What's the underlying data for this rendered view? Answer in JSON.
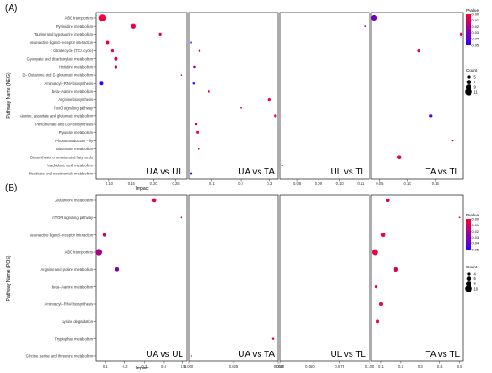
{
  "chart_data": [
    {
      "type": "scatter",
      "panel_label": "(A)",
      "ylabel": "Pathway Name (NEG)",
      "xlabel": "Impact",
      "pathways": [
        "ABC transporters",
        "Pyrimidine metabolism",
        "Taurine and hypotaurine metabolism",
        "Neuroactive ligand−receptor interaction",
        "Citrate cycle (TCA cycle)",
        "Glyoxylate and dicarboxylate metabolism",
        "Histidine metabolism",
        "D−Glutamine and D−glutamate metabolism",
        "Aminoacyl−tRNA biosynthesis",
        "beta−Alanine metabolism",
        "Arginine biosynthesis",
        "FoxO signaling pathway",
        "Alanine, aspartate and glutamate metabolism",
        "Pantothenate and CoA biosynthesis",
        "Pyruvate metabolism",
        "Phototransduction − fly",
        "Butanoate metabolism",
        "Biosynthesis of unsaturated fatty acids",
        "Arachidonic acid metabolism",
        "Nicotinate and nicotinamide metabolism"
      ],
      "legend": {
        "pvalue_title": "Pvalue",
        "pvalue_ticks": [
          "0.00",
          "0.01",
          "0.02",
          "0.03",
          "0.04",
          "0.05"
        ],
        "pvalue_range": [
          0,
          0.05
        ],
        "low_color": "#ff0033",
        "high_color": "#3300ff",
        "count_title": "Count",
        "count_values": [
          5,
          7,
          9,
          11
        ],
        "count_range": [
          3,
          11
        ]
      },
      "facets": [
        {
          "title": "UA vs UL",
          "xlim": [
            0.07,
            0.275
          ],
          "ticks": [
            0.1,
            0.15,
            0.2,
            0.25
          ],
          "tick_labels": [
            "0.10",
            "0.15",
            "0.20",
            "0.25"
          ],
          "points": [
            {
              "pathway": "ABC transporters",
              "impact": 0.085,
              "p": 0.002,
              "count": 11
            },
            {
              "pathway": "Pyrimidine metabolism",
              "impact": 0.155,
              "p": 0.004,
              "count": 8
            },
            {
              "pathway": "Taurine and hypotaurine metabolism",
              "impact": 0.215,
              "p": 0.003,
              "count": 5
            },
            {
              "pathway": "Neuroactive ligand−receptor interaction",
              "impact": 0.097,
              "p": 0.006,
              "count": 6
            },
            {
              "pathway": "Citrate cycle (TCA cycle)",
              "impact": 0.107,
              "p": 0.006,
              "count": 5
            },
            {
              "pathway": "Glyoxylate and dicarboxylate metabolism",
              "impact": 0.115,
              "p": 0.008,
              "count": 6
            },
            {
              "pathway": "Histidine metabolism",
              "impact": 0.115,
              "p": 0.012,
              "count": 5
            },
            {
              "pathway": "D−Glutamine and D−glutamate metabolism",
              "impact": 0.262,
              "p": 0.02,
              "count": 3
            },
            {
              "pathway": "Aminoacyl−tRNA biosynthesis",
              "impact": 0.083,
              "p": 0.048,
              "count": 6
            }
          ]
        },
        {
          "title": "UA vs TA",
          "xlim": [
            0.02,
            0.33
          ],
          "ticks": [
            0.1,
            0.2,
            0.3
          ],
          "tick_labels": [
            "0.1",
            "0.2",
            "0.3"
          ],
          "points": [
            {
              "pathway": "Neuroactive ligand−receptor interaction",
              "impact": 0.028,
              "p": 0.045,
              "count": 4
            },
            {
              "pathway": "Citrate cycle (TCA cycle)",
              "impact": 0.057,
              "p": 0.01,
              "count": 4
            },
            {
              "pathway": "Histidine metabolism",
              "impact": 0.04,
              "p": 0.022,
              "count": 4
            },
            {
              "pathway": "Aminoacyl−tRNA biosynthesis",
              "impact": 0.038,
              "p": 0.048,
              "count": 4
            },
            {
              "pathway": "beta−Alanine metabolism",
              "impact": 0.09,
              "p": 0.005,
              "count": 4
            },
            {
              "pathway": "Arginine biosynthesis",
              "impact": 0.3,
              "p": 0.006,
              "count": 5
            },
            {
              "pathway": "FoxO signaling pathway",
              "impact": 0.2,
              "p": 0.02,
              "count": 3
            },
            {
              "pathway": "Alanine, aspartate and glutamate metabolism",
              "impact": 0.32,
              "p": 0.005,
              "count": 5
            },
            {
              "pathway": "Pantothenate and CoA biosynthesis",
              "impact": 0.045,
              "p": 0.01,
              "count": 4
            },
            {
              "pathway": "Pyruvate metabolism",
              "impact": 0.05,
              "p": 0.006,
              "count": 5
            },
            {
              "pathway": "Butanoate metabolism",
              "impact": 0.055,
              "p": 0.025,
              "count": 4
            },
            {
              "pathway": "Nicotinate and nicotinamide metabolism",
              "impact": 0.028,
              "p": 0.046,
              "count": 5
            }
          ]
        },
        {
          "title": "UL vs TL",
          "xlim": [
            0.072,
            0.114
          ],
          "ticks": [
            0.08,
            0.09,
            0.1,
            0.11
          ],
          "tick_labels": [
            "0.08",
            "0.09",
            "0.10",
            "0.11"
          ],
          "points": [
            {
              "pathway": "Pyrimidine metabolism",
              "impact": 0.112,
              "p": 0.025,
              "count": 3
            },
            {
              "pathway": "Arachidonic acid metabolism",
              "impact": 0.073,
              "p": 0.025,
              "count": 3
            }
          ]
        },
        {
          "title": "TA vs TL",
          "xlim": [
            0.035,
            0.2
          ],
          "ticks": [
            0.05,
            0.1,
            0.15
          ],
          "tick_labels": [
            "0.05",
            "0.10",
            "0.15"
          ],
          "points": [
            {
              "pathway": "ABC transporters",
              "impact": 0.04,
              "p": 0.034,
              "count": 9
            },
            {
              "pathway": "Taurine and hypotaurine metabolism",
              "impact": 0.196,
              "p": 0.003,
              "count": 5
            },
            {
              "pathway": "Citrate cycle (TCA cycle)",
              "impact": 0.12,
              "p": 0.006,
              "count": 5
            },
            {
              "pathway": "Alanine, aspartate and glutamate metabolism",
              "impact": 0.142,
              "p": 0.04,
              "count": 5
            },
            {
              "pathway": "Phototransduction − fly",
              "impact": 0.18,
              "p": 0.02,
              "count": 3
            },
            {
              "pathway": "Biosynthesis of unsaturated fatty acids",
              "impact": 0.085,
              "p": 0.004,
              "count": 7
            }
          ]
        }
      ]
    },
    {
      "type": "scatter",
      "panel_label": "(B)",
      "ylabel": "Pathway Name (POS)",
      "xlabel": "Impact",
      "pathways": [
        "Glutathione metabolism",
        "mTOR signaling pathway",
        "Neuroactive ligand−receptor interaction",
        "ABC transporters",
        "Arginine and proline metabolism",
        "beta−Alanine metabolism",
        "Aminoacyl−tRNA biosynthesis",
        "Lysine degradation",
        "Tryptophan metabolism",
        "Glycine, serine and threonine metabolism"
      ],
      "legend": {
        "pvalue_title": "Pvalue",
        "pvalue_ticks": [
          "0.00",
          "0.01",
          "0.02",
          "0.03",
          "0.04",
          "0.05"
        ],
        "pvalue_range": [
          0,
          0.05
        ],
        "low_color": "#ff0033",
        "high_color": "#3300ff",
        "count_title": "Count",
        "count_values": [
          4,
          6,
          8,
          10
        ],
        "count_range": [
          2,
          10
        ]
      },
      "facets": [
        {
          "title": "UA vs UL",
          "xlim": [
            0.05,
            0.52
          ],
          "ticks": [
            0.1,
            0.2,
            0.3,
            0.4,
            0.5
          ],
          "tick_labels": [
            "0.1",
            "0.2",
            "0.3",
            "0.4",
            "0.5"
          ],
          "points": [
            {
              "pathway": "Glutathione metabolism",
              "impact": 0.35,
              "p": 0.006,
              "count": 6
            },
            {
              "pathway": "mTOR signaling pathway",
              "impact": 0.49,
              "p": 0.025,
              "count": 2
            },
            {
              "pathway": "Neuroactive ligand−receptor interaction",
              "impact": 0.095,
              "p": 0.008,
              "count": 5
            },
            {
              "pathway": "ABC transporters",
              "impact": 0.065,
              "p": 0.02,
              "count": 10
            },
            {
              "pathway": "Arginine and proline metabolism",
              "impact": 0.16,
              "p": 0.03,
              "count": 6
            }
          ]
        },
        {
          "title": "UA vs TA",
          "xlim": [
            0.0,
            0.05
          ],
          "ticks": [
            0.0,
            0.025,
            0.05
          ],
          "tick_labels": [
            "0.000",
            "0.025",
            "0.050"
          ],
          "points": [
            {
              "pathway": "Tryptophan metabolism",
              "impact": 0.047,
              "p": 0.005,
              "count": 3
            },
            {
              "pathway": "Glycine, serine and threonine metabolism",
              "impact": 0.0015,
              "p": 0.02,
              "count": 2
            }
          ]
        },
        {
          "title": "UL vs TL",
          "xlim": [
            0.025,
            0.1
          ],
          "ticks": [
            0.025,
            0.05,
            0.075,
            0.1
          ],
          "tick_labels": [
            "0.025",
            "0.050",
            "0.075",
            "0.100"
          ],
          "points": []
        },
        {
          "title": "TA vs TL",
          "xlim": [
            0.05,
            0.52
          ],
          "ticks": [
            0.1,
            0.2,
            0.3,
            0.4,
            0.5
          ],
          "tick_labels": [
            "0.1",
            "0.2",
            "0.3",
            "0.4",
            "0.5"
          ],
          "points": [
            {
              "pathway": "Glutathione metabolism",
              "impact": 0.135,
              "p": 0.01,
              "count": 5
            },
            {
              "pathway": "mTOR signaling pathway",
              "impact": 0.5,
              "p": 0.004,
              "count": 2
            },
            {
              "pathway": "Neuroactive ligand−receptor interaction",
              "impact": 0.11,
              "p": 0.004,
              "count": 6
            },
            {
              "pathway": "ABC transporters",
              "impact": 0.07,
              "p": 0.005,
              "count": 9
            },
            {
              "pathway": "Arginine and proline metabolism",
              "impact": 0.175,
              "p": 0.008,
              "count": 7
            },
            {
              "pathway": "beta−Alanine metabolism",
              "impact": 0.075,
              "p": 0.006,
              "count": 4
            },
            {
              "pathway": "Aminoacyl−tRNA biosynthesis",
              "impact": 0.1,
              "p": 0.004,
              "count": 5
            },
            {
              "pathway": "Lysine degradation",
              "impact": 0.082,
              "p": 0.008,
              "count": 5
            }
          ]
        }
      ]
    }
  ]
}
